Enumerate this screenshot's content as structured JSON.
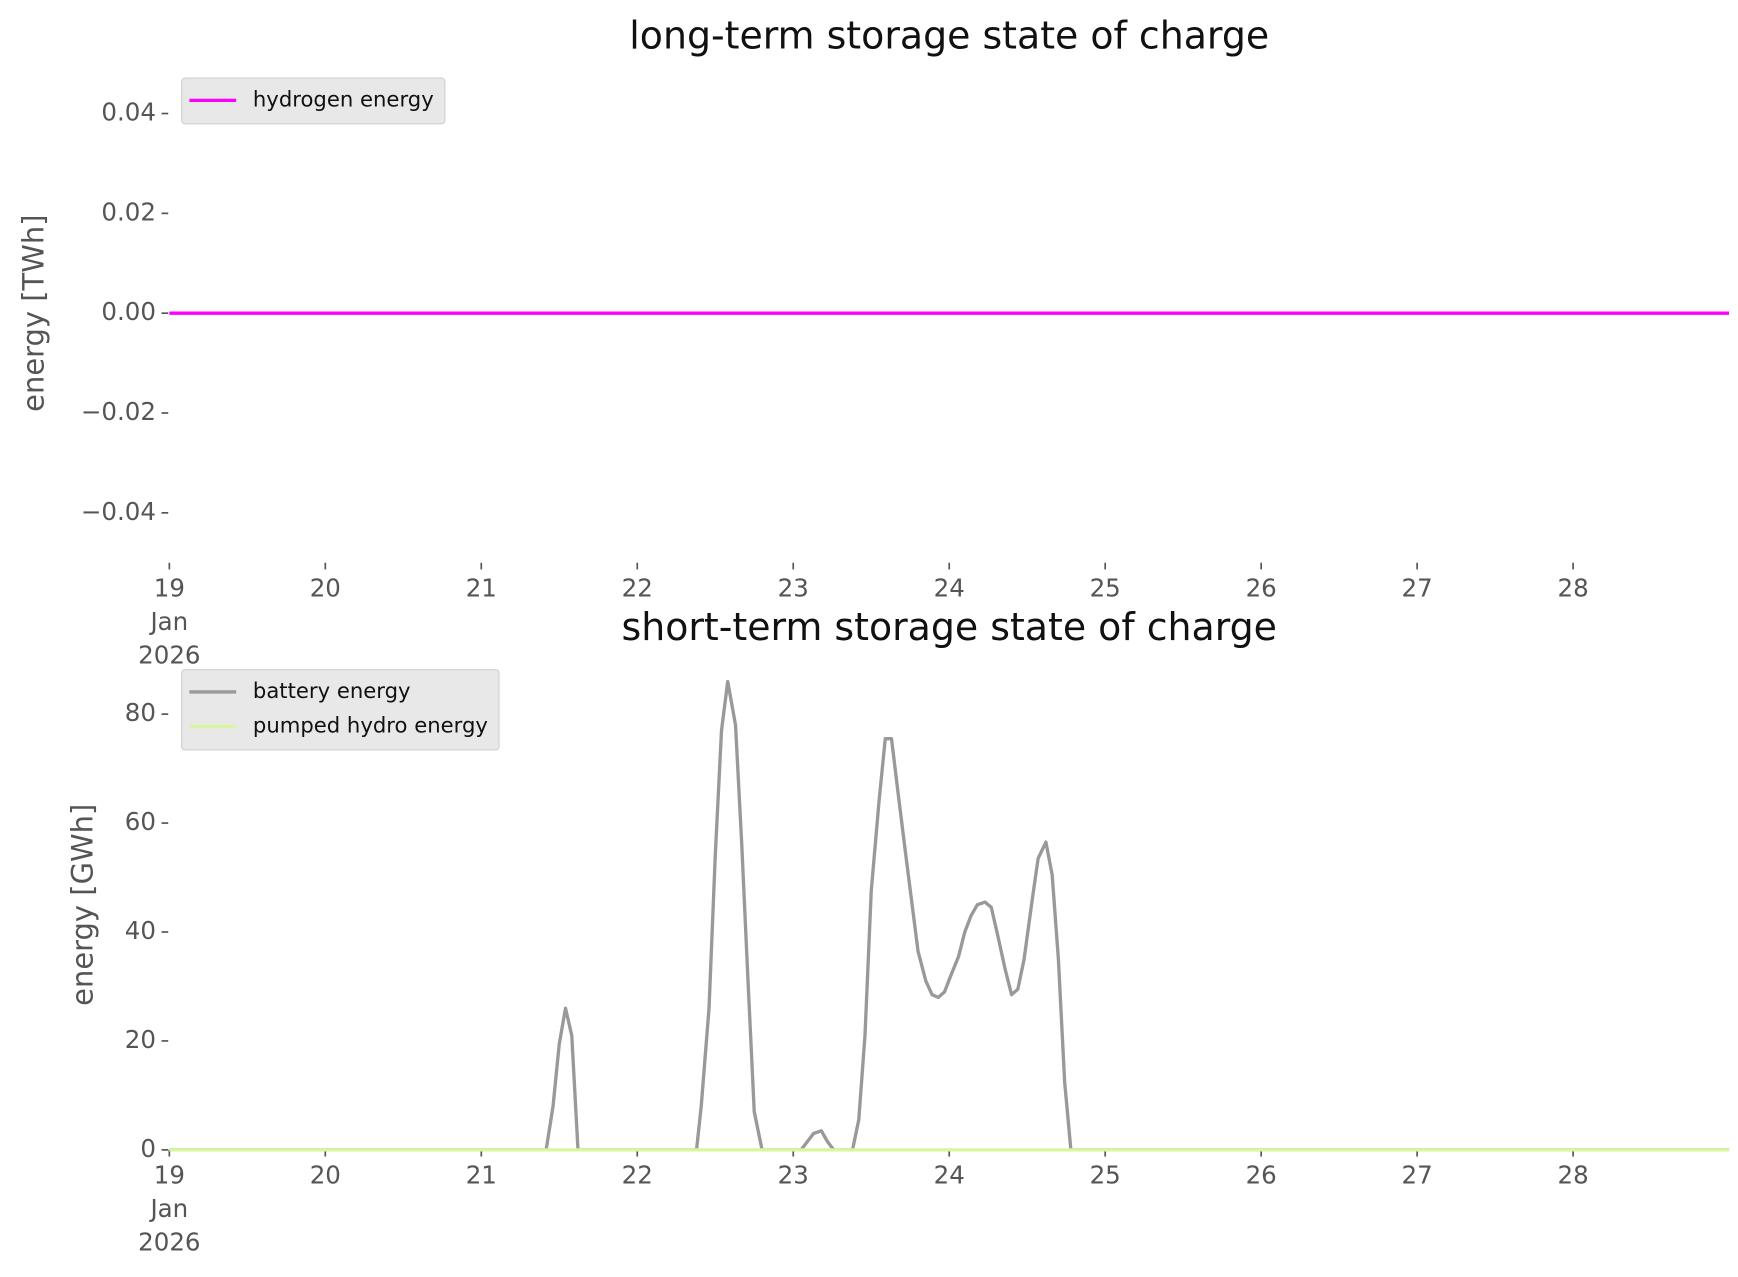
{
  "chart_data": [
    {
      "type": "line",
      "title": "long-term storage state of charge",
      "ylabel": "energy [TWh]",
      "xlim": [
        19,
        29
      ],
      "xticks": [
        {
          "value": 19,
          "label": "19\nJan\n2026"
        },
        20,
        21,
        22,
        23,
        24,
        25,
        26,
        27,
        28
      ],
      "ylim": [
        -0.05,
        0.05
      ],
      "yticks": [
        {
          "value": -0.04,
          "label": "−0.04"
        },
        {
          "value": -0.02,
          "label": "−0.02"
        },
        {
          "value": 0,
          "label": "0.00"
        },
        {
          "value": 0.02,
          "label": "0.02"
        },
        {
          "value": 0.04,
          "label": "0.04"
        }
      ],
      "legend": "upper left",
      "series": [
        {
          "name": "hydrogen energy",
          "color": "#ff00ff",
          "x": [
            19,
            29
          ],
          "values": [
            0,
            0
          ]
        }
      ]
    },
    {
      "type": "line",
      "title": "short-term storage state of charge",
      "ylabel": "energy [GWh]",
      "xlim": [
        19,
        29
      ],
      "xticks": [
        {
          "value": 19,
          "label": "19\nJan\n2026"
        },
        20,
        21,
        22,
        23,
        24,
        25,
        26,
        27,
        28
      ],
      "ylim": [
        0,
        90
      ],
      "yticks": [
        0,
        20,
        40,
        60,
        80
      ],
      "legend": "upper left",
      "series": [
        {
          "name": "battery energy",
          "color": "#999999",
          "x": [
            19,
            21.416,
            21.46,
            21.5,
            21.54,
            21.58,
            21.62,
            22.38,
            22.41,
            22.46,
            22.5,
            22.54,
            22.58,
            22.63,
            22.67,
            22.71,
            22.75,
            22.8,
            23.05,
            23.09,
            23.13,
            23.18,
            23.22,
            23.26,
            23.38,
            23.42,
            23.46,
            23.5,
            23.55,
            23.59,
            23.63,
            23.67,
            23.72,
            23.76,
            23.8,
            23.85,
            23.89,
            23.93,
            23.97,
            24.01,
            24.06,
            24.1,
            24.14,
            24.18,
            24.23,
            24.27,
            24.31,
            24.36,
            24.4,
            24.44,
            24.48,
            24.53,
            24.57,
            24.62,
            24.66,
            24.7,
            24.74,
            24.78,
            29
          ],
          "values": [
            0,
            0,
            8,
            19.5,
            26,
            21,
            0,
            0,
            8,
            26,
            54,
            77,
            86,
            78,
            56,
            31,
            7,
            0,
            0,
            1.5,
            3,
            3.5,
            1.5,
            0,
            0,
            5.5,
            21,
            47.5,
            64,
            75.5,
            75.5,
            66,
            54.5,
            45.5,
            36.5,
            31,
            28.5,
            28,
            29,
            32,
            35.5,
            40,
            43,
            45,
            45.5,
            44.5,
            39.5,
            33,
            28.5,
            29.5,
            35,
            45.5,
            53.5,
            56.5,
            50.5,
            35,
            12.5,
            0,
            0
          ]
        },
        {
          "name": "pumped hydro energy",
          "color": "#d8f5a2",
          "x": [
            19,
            29
          ],
          "values": [
            0,
            0
          ]
        }
      ]
    }
  ]
}
